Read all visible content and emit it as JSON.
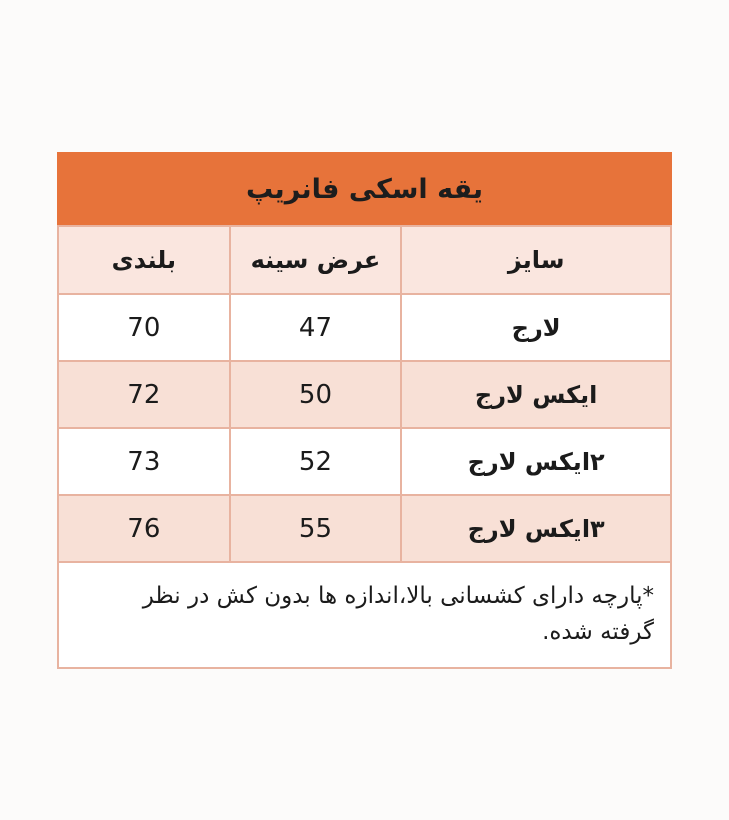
{
  "chart_data": {
    "type": "table",
    "title": "یقه اسکی فانریپ",
    "columns": [
      "سایز",
      "عرض سینه",
      "بلندی"
    ],
    "rows": [
      [
        "لارج",
        "47",
        "70"
      ],
      [
        "ایکس لارج",
        "50",
        "72"
      ],
      [
        "۲ایکس لارج",
        "52",
        "73"
      ],
      [
        "۳ایکس لارج",
        "55",
        "76"
      ]
    ],
    "footnote": "*پارچه دارای کشسانی بالا،اندازه ها بدون کش در نظر گرفته شده.",
    "layout_hints": {
      "direction": "rtl",
      "row_striping": "white / light-pink alternating",
      "column_width_percent": [
        44,
        28,
        28
      ]
    }
  },
  "colors": {
    "title_bg": "#e7733a",
    "header_bg": "#fae6df",
    "row_alt_bg": "#f8e0d6",
    "border": "#e8b3a0",
    "text": "#1b1b1b",
    "page_bg": "#fcfbfa"
  }
}
